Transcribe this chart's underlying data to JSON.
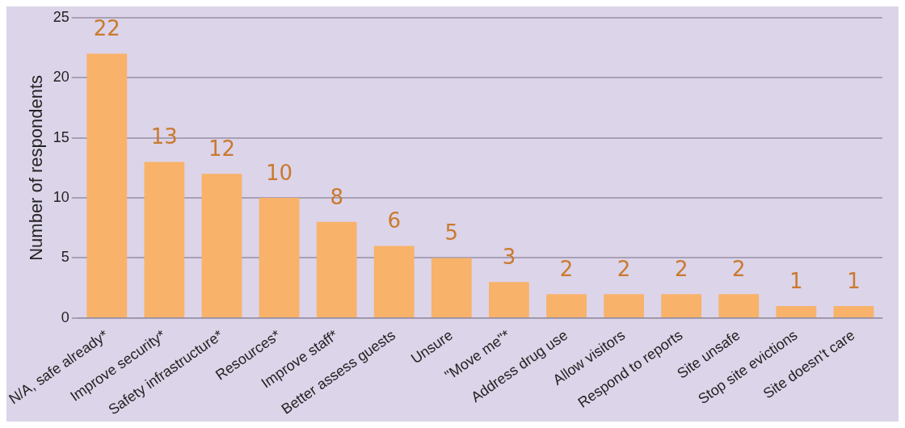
{
  "chart_data": {
    "type": "bar",
    "ylabel": "Number of respondents",
    "categories": [
      "N/A, safe already*",
      "Improve security*",
      "Safety infrastructure*",
      "Resources*",
      "Improve staff*",
      "Better assess guests",
      "Unsure",
      "\"Move me\"*",
      "Address drug use",
      "Allow visitors",
      "Respond to reports",
      "Site unsafe",
      "Stop site evictions",
      "Site doesn't care"
    ],
    "values": [
      22,
      13,
      12,
      10,
      8,
      6,
      5,
      3,
      2,
      2,
      2,
      2,
      1,
      1
    ],
    "color": "#f8b26a",
    "ylim": [
      0,
      25
    ],
    "yticks": [
      0,
      5,
      10,
      15,
      20,
      25
    ],
    "grid": "y",
    "data_labels": true,
    "legend": false
  }
}
